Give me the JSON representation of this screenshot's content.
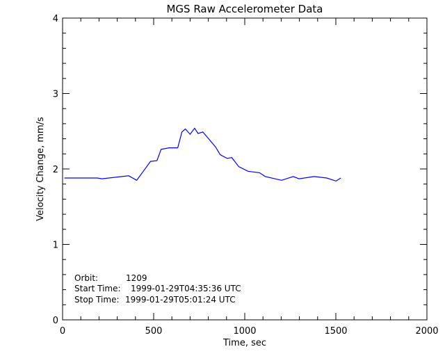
{
  "chart_data": {
    "type": "line",
    "title": "MGS Raw Accelerometer Data",
    "xlabel": "Time, sec",
    "ylabel": "Velocity Change, mm/s",
    "xlim": [
      0,
      2000
    ],
    "ylim": [
      0,
      4
    ],
    "xticks": [
      "0",
      "500",
      "1000",
      "1500",
      "2000"
    ],
    "yticks": [
      "0",
      "1",
      "2",
      "3",
      "4"
    ],
    "grid": false,
    "line_color": "#0000ff",
    "series": [
      {
        "x": [
          10,
          191,
          216,
          363,
          407,
          443,
          483,
          518,
          541,
          584,
          632,
          655,
          674,
          700,
          725,
          744,
          770,
          802,
          840,
          865,
          903,
          929,
          967,
          1018,
          1081,
          1113,
          1202,
          1266,
          1298,
          1381,
          1450,
          1501,
          1527
        ],
        "y": [
          1.88,
          1.88,
          1.87,
          1.91,
          1.85,
          1.97,
          2.1,
          2.11,
          2.26,
          2.28,
          2.28,
          2.49,
          2.53,
          2.46,
          2.54,
          2.47,
          2.49,
          2.4,
          2.29,
          2.19,
          2.14,
          2.15,
          2.03,
          1.97,
          1.95,
          1.9,
          1.85,
          1.9,
          1.87,
          1.9,
          1.88,
          1.84,
          1.88
        ]
      }
    ],
    "annotations": {
      "orbit_label": "Orbit:",
      "orbit_value": "1209",
      "start_label": "Start Time:",
      "start_value": "1999-01-29T04:35:36 UTC",
      "stop_label": "Stop Time:",
      "stop_value": "1999-01-29T05:01:24 UTC"
    }
  }
}
